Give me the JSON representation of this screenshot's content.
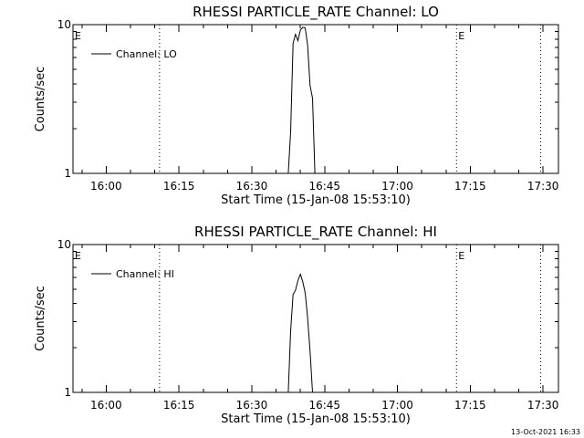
{
  "chart_data": [
    {
      "type": "line",
      "title": "RHESSI PARTICLE_RATE Channel: LO",
      "xlabel": "Start Time (15-Jan-08 15:53:10)",
      "ylabel": "Counts/sec",
      "y_scale": "log",
      "ylim": [
        1,
        10
      ],
      "yticks": [
        1,
        10
      ],
      "xlim": [
        "15:53:10",
        "17:33:10"
      ],
      "xticks": [
        "16:00",
        "16:15",
        "16:30",
        "16:45",
        "17:00",
        "17:15",
        "17:30"
      ],
      "grid": false,
      "legend_position": "top-left",
      "markers": [
        {
          "label": "E",
          "time": "15:53:10",
          "style": "label-only"
        },
        {
          "label": "",
          "time": "16:11:00",
          "style": "dotted"
        },
        {
          "label": "E",
          "time": "17:12:10",
          "style": "dotted"
        },
        {
          "label": "",
          "time": "17:29:30",
          "style": "dotted"
        }
      ],
      "series": [
        {
          "name": "Channel: LO",
          "x": [
            "16:37:30",
            "16:38:00",
            "16:38:30",
            "16:39:00",
            "16:39:30",
            "16:40:00",
            "16:40:30",
            "16:41:00",
            "16:41:30",
            "16:42:00",
            "16:42:30",
            "16:43:00"
          ],
          "y": [
            1.0,
            1.9,
            7.5,
            8.6,
            7.8,
            9.2,
            9.6,
            9.5,
            7.3,
            3.9,
            3.2,
            1.0
          ]
        }
      ]
    },
    {
      "type": "line",
      "title": "RHESSI PARTICLE_RATE Channel: HI",
      "xlabel": "Start Time (15-Jan-08 15:53:10)",
      "ylabel": "Counts/sec",
      "y_scale": "log",
      "ylim": [
        1,
        10
      ],
      "yticks": [
        1,
        10
      ],
      "xlim": [
        "15:53:10",
        "17:33:10"
      ],
      "xticks": [
        "16:00",
        "16:15",
        "16:30",
        "16:45",
        "17:00",
        "17:15",
        "17:30"
      ],
      "grid": false,
      "legend_position": "top-left",
      "markers": [
        {
          "label": "E",
          "time": "15:53:10",
          "style": "label-only"
        },
        {
          "label": "",
          "time": "16:11:00",
          "style": "dotted"
        },
        {
          "label": "E",
          "time": "17:12:10",
          "style": "dotted"
        },
        {
          "label": "",
          "time": "17:29:30",
          "style": "dotted"
        }
      ],
      "series": [
        {
          "name": "Channel: HI",
          "x": [
            "16:37:30",
            "16:38:00",
            "16:38:30",
            "16:39:00",
            "16:39:30",
            "16:40:00",
            "16:40:30",
            "16:41:00",
            "16:41:30",
            "16:42:00",
            "16:42:30"
          ],
          "y": [
            1.0,
            2.6,
            4.6,
            4.9,
            5.7,
            6.3,
            5.6,
            4.7,
            3.2,
            1.9,
            1.0
          ]
        }
      ]
    }
  ],
  "footer": {
    "stamp": "13-Oct-2021 16:33"
  },
  "colors": {
    "background": "#ffffff",
    "foreground": "#000000"
  }
}
